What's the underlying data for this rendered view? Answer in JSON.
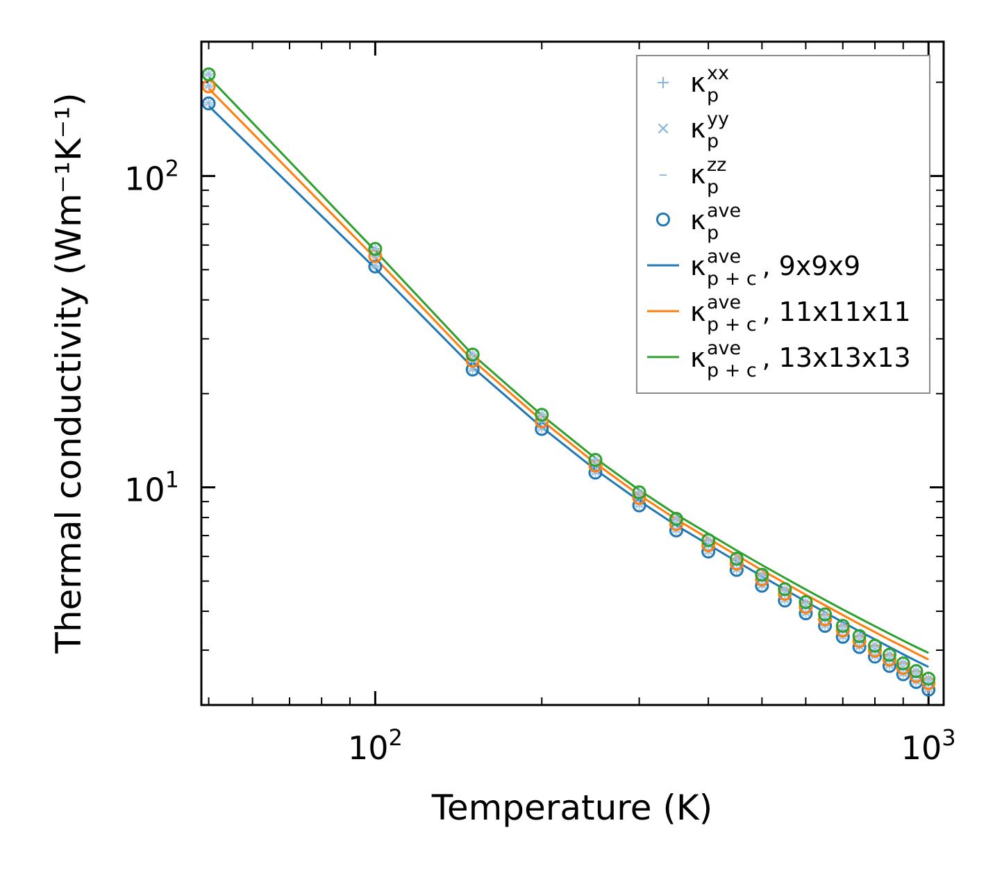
{
  "chart_data": {
    "type": "line",
    "title": "",
    "xlabel": "Temperature (K)",
    "ylabel": "Thermal conductivity (Wm⁻¹K⁻¹)",
    "xscale": "log",
    "yscale": "log",
    "xlim": [
      48.5,
      1065
    ],
    "ylim": [
      2.0,
      270
    ],
    "x_tick_labels": [
      {
        "value": 100,
        "base": "10",
        "exp": "2"
      },
      {
        "value": 1000,
        "base": "10",
        "exp": "3"
      }
    ],
    "y_tick_labels": [
      {
        "value": 10,
        "base": "10",
        "exp": "1"
      },
      {
        "value": 100,
        "base": "10",
        "exp": "2"
      }
    ],
    "x": [
      50,
      100,
      150,
      200,
      250,
      300,
      350,
      400,
      450,
      500,
      550,
      600,
      650,
      700,
      750,
      800,
      850,
      900,
      950,
      1000
    ],
    "marker_series": [
      {
        "name": "9x9x9",
        "color": "#1f77b4",
        "kxx": [
          172,
          51.5,
          24.0,
          15.5,
          11.2,
          8.8,
          7.3,
          6.25,
          5.45,
          4.85,
          4.35,
          3.95,
          3.6,
          3.32,
          3.08,
          2.87,
          2.68,
          2.52,
          2.38,
          2.25
        ],
        "kyy": [
          172,
          51.5,
          24.0,
          15.5,
          11.2,
          8.8,
          7.3,
          6.25,
          5.45,
          4.85,
          4.35,
          3.95,
          3.6,
          3.32,
          3.08,
          2.87,
          2.68,
          2.52,
          2.38,
          2.25
        ],
        "kzz": [
          170,
          51.0,
          23.7,
          15.3,
          11.05,
          8.7,
          7.2,
          6.15,
          5.38,
          4.78,
          4.29,
          3.9,
          3.56,
          3.28,
          3.04,
          2.84,
          2.65,
          2.49,
          2.35,
          2.22
        ],
        "kave": [
          171,
          51.2,
          23.9,
          15.4,
          11.15,
          8.75,
          7.27,
          6.22,
          5.43,
          4.83,
          4.33,
          3.94,
          3.59,
          3.31,
          3.07,
          2.86,
          2.67,
          2.51,
          2.37,
          2.24
        ]
      },
      {
        "name": "11x11x11",
        "color": "#ff7f0e",
        "kxx": [
          195,
          55.5,
          25.6,
          16.4,
          11.8,
          9.3,
          7.65,
          6.55,
          5.72,
          5.08,
          4.57,
          4.15,
          3.79,
          3.49,
          3.23,
          3.01,
          2.81,
          2.64,
          2.49,
          2.36
        ],
        "kyy": [
          195,
          55.5,
          25.6,
          16.4,
          11.8,
          9.3,
          7.65,
          6.55,
          5.72,
          5.08,
          4.57,
          4.15,
          3.79,
          3.49,
          3.23,
          3.01,
          2.81,
          2.64,
          2.49,
          2.36
        ],
        "kzz": [
          193,
          55.0,
          25.3,
          16.2,
          11.65,
          9.2,
          7.57,
          6.47,
          5.65,
          5.02,
          4.51,
          4.1,
          3.74,
          3.45,
          3.19,
          2.97,
          2.78,
          2.61,
          2.46,
          2.33
        ],
        "kave": [
          194,
          55.3,
          25.5,
          16.3,
          11.75,
          9.25,
          7.62,
          6.52,
          5.69,
          5.06,
          4.55,
          4.13,
          3.77,
          3.47,
          3.21,
          2.99,
          2.8,
          2.63,
          2.48,
          2.35
        ]
      },
      {
        "name": "13x13x13",
        "color": "#2ca02c",
        "kxx": [
          213,
          58.5,
          26.8,
          17.2,
          12.3,
          9.68,
          7.95,
          6.8,
          5.93,
          5.26,
          4.73,
          4.3,
          3.93,
          3.61,
          3.35,
          3.12,
          2.92,
          2.74,
          2.58,
          2.44
        ],
        "kyy": [
          213,
          58.5,
          26.8,
          17.2,
          12.3,
          9.68,
          7.95,
          6.8,
          5.93,
          5.26,
          4.73,
          4.3,
          3.93,
          3.61,
          3.35,
          3.12,
          2.92,
          2.74,
          2.58,
          2.44
        ],
        "kzz": [
          211,
          58.0,
          26.5,
          17.0,
          12.15,
          9.58,
          7.87,
          6.72,
          5.86,
          5.2,
          4.68,
          4.25,
          3.88,
          3.57,
          3.31,
          3.08,
          2.88,
          2.71,
          2.55,
          2.41
        ],
        "kave": [
          212,
          58.3,
          26.7,
          17.1,
          12.25,
          9.64,
          7.92,
          6.77,
          5.9,
          5.24,
          4.71,
          4.28,
          3.91,
          3.59,
          3.33,
          3.1,
          2.9,
          2.72,
          2.57,
          2.43
        ]
      }
    ],
    "line_series": [
      {
        "name": "9x9x9",
        "color": "#1f77b4",
        "values": [
          168,
          50.5,
          24.3,
          15.6,
          11.4,
          9.05,
          7.55,
          6.55,
          5.78,
          5.18,
          4.7,
          4.3,
          3.97,
          3.69,
          3.45,
          3.25,
          3.07,
          2.91,
          2.77,
          2.65
        ]
      },
      {
        "name": "11x11x11",
        "color": "#ff7f0e",
        "values": [
          191,
          54.5,
          25.6,
          16.4,
          11.95,
          9.45,
          7.9,
          6.85,
          6.05,
          5.42,
          4.93,
          4.52,
          4.18,
          3.89,
          3.64,
          3.43,
          3.24,
          3.08,
          2.93,
          2.8
        ]
      },
      {
        "name": "13x13x13",
        "color": "#2ca02c",
        "values": [
          208,
          57.5,
          26.7,
          17.05,
          12.4,
          9.8,
          8.18,
          7.1,
          6.27,
          5.63,
          5.12,
          4.7,
          4.35,
          4.05,
          3.8,
          3.58,
          3.39,
          3.22,
          3.07,
          2.94
        ]
      }
    ],
    "legend": {
      "position": "top-right",
      "entries": [
        {
          "symbol": "+",
          "base": "κ",
          "sup": "xx",
          "sub": "p",
          "suffix": "",
          "color": "#8ab4da"
        },
        {
          "symbol": "×",
          "base": "κ",
          "sup": "yy",
          "sub": "p",
          "suffix": "",
          "color": "#8ab4da"
        },
        {
          "symbol": "–",
          "base": "κ",
          "sup": "zz",
          "sub": "p",
          "suffix": "",
          "color": "#8ab4da"
        },
        {
          "symbol": "circle",
          "base": "κ",
          "sup": "ave",
          "sub": "p",
          "suffix": "",
          "color": "#1f77b4"
        },
        {
          "symbol": "line",
          "base": "κ",
          "sup": "ave",
          "sub": "p + c",
          "suffix": ", 9x9x9",
          "color": "#1f77b4"
        },
        {
          "symbol": "line",
          "base": "κ",
          "sup": "ave",
          "sub": "p + c",
          "suffix": ", 11x11x11",
          "color": "#ff7f0e"
        },
        {
          "symbol": "line",
          "base": "κ",
          "sup": "ave",
          "sub": "p + c",
          "suffix": ", 13x13x13",
          "color": "#2ca02c"
        }
      ]
    }
  }
}
